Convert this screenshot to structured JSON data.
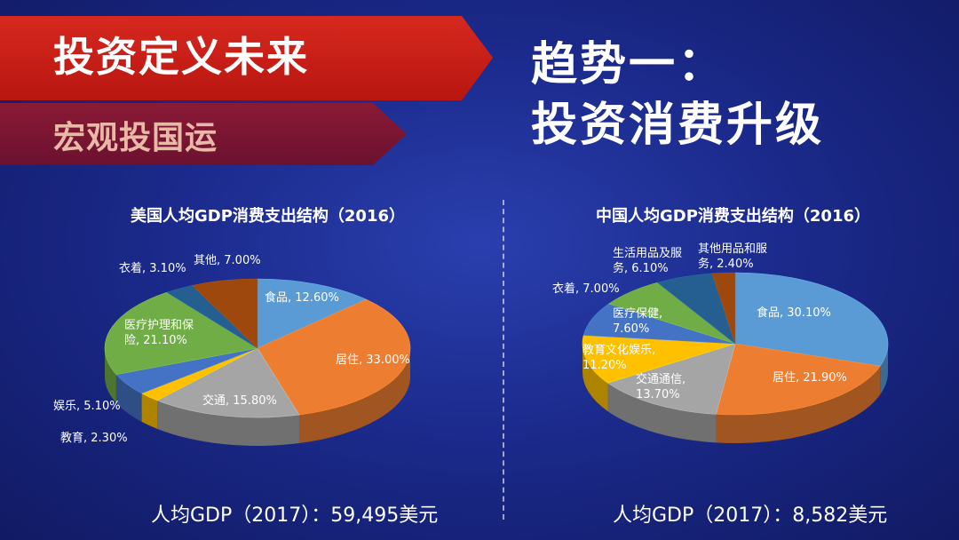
{
  "header": {
    "banner_title": "投资定义未来",
    "banner_subtitle": "宏观投国运",
    "trend_line1": "趋势一：",
    "trend_line2": "投资消费升级"
  },
  "colors": {
    "blue": "#5b9bd5",
    "orange": "#ed7d31",
    "gray": "#a5a5a5",
    "yellow": "#ffc000",
    "darkblue": "#4472c4",
    "green": "#70ad47",
    "navy": "#255e91",
    "brown": "#9e480e"
  },
  "chart_data": [
    {
      "type": "pie",
      "title": "美国人均GDP消费支出结构（2016）",
      "footer": "人均GDP（2017）：59,495美元",
      "slices": [
        {
          "name": "食品",
          "value": 12.6,
          "label": "食品, 12.60%",
          "color": "blue"
        },
        {
          "name": "居住",
          "value": 33.0,
          "label": "居住, 33.00%",
          "color": "orange"
        },
        {
          "name": "交通",
          "value": 15.8,
          "label": "交通, 15.80%",
          "color": "gray"
        },
        {
          "name": "教育",
          "value": 2.3,
          "label": "教育, 2.30%",
          "color": "yellow"
        },
        {
          "name": "娱乐",
          "value": 5.1,
          "label": "娱乐, 5.10%",
          "color": "darkblue"
        },
        {
          "name": "医疗护理和保险",
          "value": 21.1,
          "label": [
            "医疗护理和保",
            "险, 21.10%"
          ],
          "color": "green"
        },
        {
          "name": "衣着",
          "value": 3.1,
          "label": "衣着, 3.10%",
          "color": "navy"
        },
        {
          "name": "其他",
          "value": 7.0,
          "label": "其他, 7.00%",
          "color": "brown"
        }
      ]
    },
    {
      "type": "pie",
      "title": "中国人均GDP消费支出结构（2016）",
      "footer": "人均GDP（2017）：8,582美元",
      "slices": [
        {
          "name": "食品",
          "value": 30.1,
          "label": "食品, 30.10%",
          "color": "blue"
        },
        {
          "name": "居住",
          "value": 21.9,
          "label": "居住, 21.90%",
          "color": "orange"
        },
        {
          "name": "交通通信",
          "value": 13.7,
          "label": [
            "交通通信,",
            "13.70%"
          ],
          "color": "gray"
        },
        {
          "name": "教育文化娱乐",
          "value": 11.2,
          "label": [
            "教育文化娱乐,",
            "11.20%"
          ],
          "color": "yellow"
        },
        {
          "name": "医疗保健",
          "value": 7.6,
          "label": [
            "医疗保健,",
            "7.60%"
          ],
          "color": "darkblue"
        },
        {
          "name": "衣着",
          "value": 7.0,
          "label": "衣着, 7.00%",
          "color": "green"
        },
        {
          "name": "生活用品及服务",
          "value": 6.1,
          "label": [
            "生活用品及服",
            "务, 6.10%"
          ],
          "color": "navy"
        },
        {
          "name": "其他用品和服务",
          "value": 2.4,
          "label": [
            "其他用品和服",
            "务, 2.40%"
          ],
          "color": "brown"
        }
      ]
    }
  ]
}
